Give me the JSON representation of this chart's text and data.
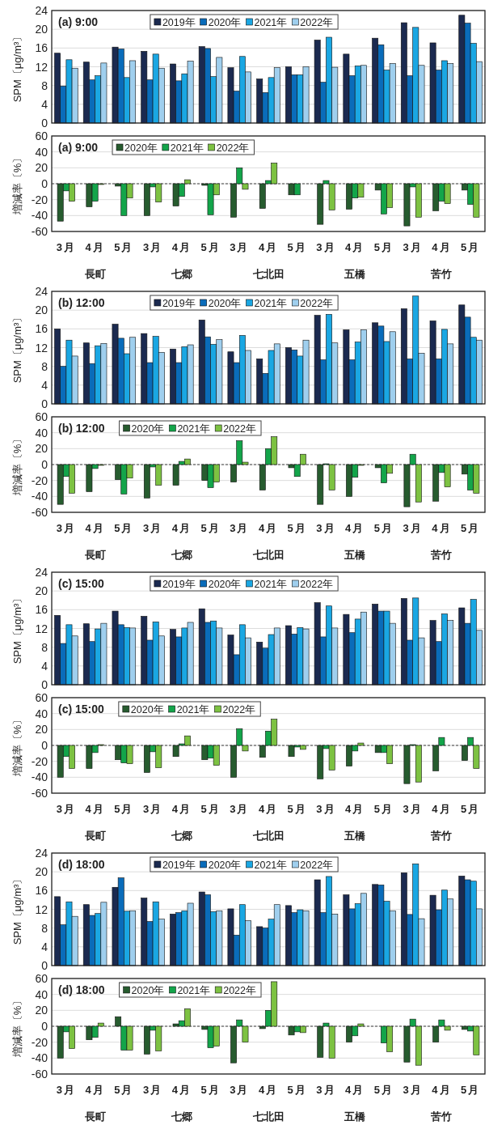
{
  "chart_data": [
    {
      "type": "bar",
      "title": "(a) 9:00",
      "ylabel": "SPM〔μg/m³〕",
      "categories": [
        null,
        null,
        null,
        null,
        null,
        null,
        null,
        null,
        null,
        null,
        null,
        null,
        null,
        null,
        null
      ],
      "ylim": [
        0,
        24
      ],
      "yticks": [
        0,
        4,
        8,
        12,
        16,
        20,
        24
      ],
      "grid": "y",
      "legend": "top",
      "tick_labels": "y",
      "series": [
        {
          "name": "2019年",
          "color": "#1b2a50",
          "values": [
            14.9,
            13.0,
            16.2,
            15.3,
            12.6,
            16.3,
            11.8,
            9.4,
            12.0,
            17.7,
            14.7,
            18.1,
            21.4,
            17.1,
            23.0
          ]
        },
        {
          "name": "2020年",
          "color": "#0a6cba",
          "values": [
            7.9,
            9.2,
            15.8,
            9.2,
            9.0,
            15.9,
            6.8,
            6.5,
            10.3,
            8.7,
            10.1,
            16.7,
            10.1,
            11.3,
            21.3
          ]
        },
        {
          "name": "2021年",
          "color": "#1aa7e3",
          "values": [
            13.5,
            10.1,
            9.7,
            14.7,
            10.5,
            9.9,
            14.2,
            9.7,
            10.3,
            18.3,
            12.2,
            11.3,
            20.4,
            13.3,
            17.0
          ]
        },
        {
          "name": "2022年",
          "color": "#9fcfee",
          "values": [
            11.7,
            12.8,
            13.3,
            11.7,
            13.2,
            14.0,
            10.9,
            11.8,
            12.0,
            11.9,
            12.3,
            12.7,
            12.3,
            12.7,
            13.1
          ]
        }
      ]
    },
    {
      "type": "bar",
      "title": "(a) 9:00",
      "ylabel": "増減率〔%〕",
      "categories": [
        "3月",
        "4月",
        "5月",
        "3月",
        "4月",
        "5月",
        "3月",
        "4月",
        "5月",
        "3月",
        "4月",
        "5月",
        "3月",
        "4月",
        "5月"
      ],
      "ylim": [
        -60,
        60
      ],
      "yticks": [
        -60,
        -40,
        -20,
        0,
        20,
        40,
        60
      ],
      "grid": "y",
      "legend": "top left",
      "ref_lines": [
        {
          "axis": "y",
          "value": 0,
          "line_style": "dashed"
        }
      ],
      "annotations": [
        "長町",
        "七郷",
        "七北田",
        "五橋",
        "苦竹"
      ],
      "series": [
        {
          "name": "2020年",
          "color": "#275c2f",
          "values": [
            -47,
            -29,
            -3,
            -40,
            -28,
            -2,
            -42,
            -31,
            -14,
            -51,
            -32,
            -8,
            -53,
            -34,
            -8
          ]
        },
        {
          "name": "2021年",
          "color": "#13a54a",
          "values": [
            -9,
            -22,
            -40,
            -4,
            -16,
            -39,
            20,
            4,
            -14,
            4,
            -18,
            -38,
            -4,
            -22,
            -26
          ]
        },
        {
          "name": "2022年",
          "color": "#7dc242",
          "values": [
            -22,
            -1,
            -18,
            -23,
            5,
            -14,
            -7,
            26,
            0,
            -33,
            -17,
            -30,
            -42,
            -25,
            -42
          ]
        }
      ]
    },
    {
      "type": "bar",
      "title": "(b) 12:00",
      "ylabel": "SPM〔μg/m³〕",
      "categories": [
        null,
        null,
        null,
        null,
        null,
        null,
        null,
        null,
        null,
        null,
        null,
        null,
        null,
        null,
        null
      ],
      "ylim": [
        0,
        24
      ],
      "yticks": [
        0,
        4,
        8,
        12,
        16,
        20,
        24
      ],
      "grid": "y",
      "legend": "top",
      "tick_labels": "y",
      "series": [
        {
          "name": "2019年",
          "color": "#1b2a50",
          "values": [
            16.0,
            13.0,
            17.0,
            15.0,
            11.7,
            17.9,
            11.1,
            9.6,
            12.0,
            18.9,
            15.8,
            17.3,
            20.3,
            17.7,
            21.1
          ]
        },
        {
          "name": "2020年",
          "color": "#0a6cba",
          "values": [
            8.0,
            8.6,
            14.0,
            8.8,
            8.8,
            14.3,
            8.8,
            6.5,
            11.5,
            9.4,
            9.4,
            16.6,
            9.6,
            9.6,
            18.5
          ]
        },
        {
          "name": "2021年",
          "color": "#1aa7e3",
          "values": [
            13.6,
            12.4,
            10.7,
            14.4,
            12.2,
            12.7,
            14.6,
            11.4,
            10.2,
            19.1,
            13.2,
            13.3,
            23.0,
            15.9,
            14.2
          ]
        },
        {
          "name": "2022年",
          "color": "#9fcfee",
          "values": [
            10.2,
            12.9,
            14.2,
            11.0,
            12.6,
            13.7,
            11.4,
            12.8,
            13.6,
            13.0,
            15.8,
            15.4,
            10.8,
            12.8,
            13.6
          ]
        }
      ]
    },
    {
      "type": "bar",
      "title": "(b) 12:00",
      "ylabel": "増減率〔%〕",
      "categories": [
        "3月",
        "4月",
        "5月",
        "3月",
        "4月",
        "5月",
        "3月",
        "4月",
        "5月",
        "3月",
        "4月",
        "5月",
        "3月",
        "4月",
        "5月"
      ],
      "ylim": [
        -60,
        60
      ],
      "yticks": [
        -60,
        -40,
        -20,
        0,
        20,
        40,
        60
      ],
      "grid": "y",
      "legend": "top left",
      "ref_lines": [
        {
          "axis": "y",
          "value": 0,
          "line_style": "dashed"
        }
      ],
      "annotations": [
        "長町",
        "七郷",
        "七北田",
        "五橋",
        "苦竹"
      ],
      "series": [
        {
          "name": "2020年",
          "color": "#275c2f",
          "values": [
            -50,
            -34,
            -19,
            -42,
            -26,
            -20,
            -22,
            -32,
            -4,
            -50,
            -40,
            -4,
            -53,
            -46,
            -12
          ]
        },
        {
          "name": "2021年",
          "color": "#13a54a",
          "values": [
            -15,
            -5,
            -37,
            -3,
            4,
            -29,
            30,
            20,
            -15,
            1,
            -16,
            -23,
            13,
            -10,
            -32
          ]
        },
        {
          "name": "2022年",
          "color": "#7dc242",
          "values": [
            -36,
            -1,
            -17,
            -26,
            7,
            -22,
            3,
            35,
            13,
            -32,
            -1,
            -11,
            -47,
            -28,
            -36
          ]
        }
      ]
    },
    {
      "type": "bar",
      "title": "(c) 15:00",
      "ylabel": "SPM〔μg/m³〕",
      "categories": [
        null,
        null,
        null,
        null,
        null,
        null,
        null,
        null,
        null,
        null,
        null,
        null,
        null,
        null,
        null
      ],
      "ylim": [
        0,
        24
      ],
      "yticks": [
        0,
        4,
        8,
        12,
        16,
        20,
        24
      ],
      "grid": "y",
      "legend": "top",
      "tick_labels": "y",
      "series": [
        {
          "name": "2019年",
          "color": "#1b2a50",
          "values": [
            14.8,
            13.0,
            15.7,
            14.6,
            11.8,
            16.2,
            10.6,
            9.1,
            12.6,
            17.5,
            15.0,
            17.2,
            18.4,
            13.7,
            16.4
          ]
        },
        {
          "name": "2020年",
          "color": "#0a6cba",
          "values": [
            8.8,
            9.2,
            12.8,
            9.5,
            10.2,
            13.3,
            6.4,
            7.8,
            10.8,
            10.2,
            11.1,
            15.7,
            9.5,
            9.2,
            13.1
          ]
        },
        {
          "name": "2021年",
          "color": "#1aa7e3",
          "values": [
            12.8,
            11.9,
            12.2,
            13.4,
            12.1,
            13.6,
            12.8,
            10.7,
            12.2,
            16.8,
            14.0,
            15.7,
            18.5,
            15.1,
            18.2
          ]
        },
        {
          "name": "2022年",
          "color": "#9fcfee",
          "values": [
            10.4,
            13.1,
            12.1,
            10.4,
            13.3,
            12.1,
            10.0,
            12.1,
            11.9,
            12.1,
            15.5,
            13.1,
            10.0,
            13.7,
            11.6
          ]
        }
      ]
    },
    {
      "type": "bar",
      "title": "(c) 15:00",
      "ylabel": "増減率〔%〕",
      "categories": [
        "3月",
        "4月",
        "5月",
        "3月",
        "4月",
        "5月",
        "3月",
        "4月",
        "5月",
        "3月",
        "4月",
        "5月",
        "3月",
        "4月",
        "5月"
      ],
      "ylim": [
        -60,
        60
      ],
      "yticks": [
        -60,
        -40,
        -20,
        0,
        20,
        40,
        60
      ],
      "grid": "y",
      "legend": "top left",
      "ref_lines": [
        {
          "axis": "y",
          "value": 0,
          "line_style": "dashed"
        }
      ],
      "annotations": [
        "長町",
        "七郷",
        "七北田",
        "五橋",
        "苦竹"
      ],
      "series": [
        {
          "name": "2020年",
          "color": "#275c2f",
          "values": [
            -40,
            -29,
            -18,
            -34,
            -14,
            -18,
            -40,
            -15,
            -14,
            -42,
            -26,
            -9,
            -48,
            -32,
            -19
          ]
        },
        {
          "name": "2021年",
          "color": "#13a54a",
          "values": [
            -14,
            -9,
            -22,
            -8,
            2,
            -16,
            21,
            18,
            -2,
            -4,
            -7,
            -9,
            1,
            10,
            10
          ]
        },
        {
          "name": "2022年",
          "color": "#7dc242",
          "values": [
            -29,
            1,
            -23,
            -28,
            12,
            -25,
            -7,
            33,
            -5,
            -31,
            3,
            -23,
            -46,
            0,
            -29
          ]
        }
      ]
    },
    {
      "type": "bar",
      "title": "(d) 18:00",
      "ylabel": "SPM〔μg/m³〕",
      "categories": [
        null,
        null,
        null,
        null,
        null,
        null,
        null,
        null,
        null,
        null,
        null,
        null,
        null,
        null,
        null
      ],
      "ylim": [
        0,
        24
      ],
      "yticks": [
        0,
        4,
        8,
        12,
        16,
        20,
        24
      ],
      "grid": "y",
      "legend": "top",
      "tick_labels": "y",
      "series": [
        {
          "name": "2019年",
          "color": "#1b2a50",
          "values": [
            14.7,
            13.0,
            16.7,
            14.4,
            11.0,
            15.7,
            12.1,
            8.3,
            12.8,
            18.3,
            15.1,
            17.3,
            19.8,
            15.0,
            19.1
          ]
        },
        {
          "name": "2020年",
          "color": "#0a6cba",
          "values": [
            8.7,
            10.7,
            18.7,
            9.4,
            11.3,
            15.1,
            6.5,
            8.0,
            11.3,
            11.3,
            12.1,
            17.2,
            10.9,
            11.9,
            18.3
          ]
        },
        {
          "name": "2021年",
          "color": "#1aa7e3",
          "values": [
            13.6,
            11.1,
            11.6,
            13.6,
            11.7,
            11.5,
            13.0,
            9.9,
            11.9,
            19.0,
            13.2,
            13.7,
            21.7,
            16.1,
            18.0
          ]
        },
        {
          "name": "2022年",
          "color": "#9fcfee",
          "values": [
            10.5,
            13.5,
            11.7,
            9.9,
            13.3,
            11.7,
            9.6,
            13.0,
            11.7,
            11.0,
            15.4,
            11.7,
            10.0,
            14.2,
            12.1
          ]
        }
      ]
    },
    {
      "type": "bar",
      "title": "(d) 18:00",
      "ylabel": "増減率〔%〕",
      "categories": [
        "3月",
        "4月",
        "5月",
        "3月",
        "4月",
        "5月",
        "3月",
        "4月",
        "5月",
        "3月",
        "4月",
        "5月",
        "3月",
        "4月",
        "5月"
      ],
      "ylim": [
        -60,
        60
      ],
      "yticks": [
        -60,
        -40,
        -20,
        0,
        20,
        40,
        60
      ],
      "grid": "y",
      "legend": "top left",
      "ref_lines": [
        {
          "axis": "y",
          "value": 0,
          "line_style": "dashed"
        }
      ],
      "annotations": [
        "長町",
        "七郷",
        "七北田",
        "五橋",
        "苦竹"
      ],
      "series": [
        {
          "name": "2020年",
          "color": "#275c2f",
          "values": [
            -40,
            -17,
            12,
            -35,
            3,
            -4,
            -46,
            -3,
            -11,
            -39,
            -20,
            0,
            -45,
            -20,
            -4
          ]
        },
        {
          "name": "2021年",
          "color": "#13a54a",
          "values": [
            -7,
            -14,
            -30,
            -5,
            7,
            -27,
            8,
            20,
            -7,
            4,
            -12,
            -21,
            9,
            8,
            -6
          ]
        },
        {
          "name": "2022年",
          "color": "#7dc242",
          "values": [
            -28,
            4,
            -30,
            -31,
            22,
            -25,
            -20,
            56,
            -8,
            -40,
            3,
            -32,
            -49,
            -5,
            -36
          ]
        }
      ]
    }
  ]
}
